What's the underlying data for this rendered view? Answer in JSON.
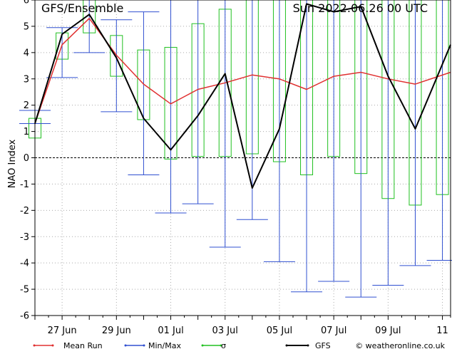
{
  "chart_data": {
    "type": "box",
    "title_left": "GFS/Ensemble",
    "title_right": "Sun 2022.06.26   00 UTC",
    "ylabel": "NAO Index",
    "ylim": [
      -6,
      6
    ],
    "yticks": [
      -6,
      -5,
      -4,
      -3,
      -2,
      -1,
      0,
      1,
      2,
      3,
      4,
      5,
      6
    ],
    "x_range": [
      26.0,
      11.3
    ],
    "xtick_labels": [
      {
        "label": "27 Jun",
        "day": 27
      },
      {
        "label": "29 Jun",
        "day": 29
      },
      {
        "label": "01 Jul",
        "day": 31
      },
      {
        "label": "03 Jul",
        "day": 33
      },
      {
        "label": "05 Jul",
        "day": 35
      },
      {
        "label": "07 Jul",
        "day": 37
      },
      {
        "label": "09 Jul",
        "day": 39
      },
      {
        "label": "11",
        "day": 41
      }
    ],
    "x_days": [
      26.0,
      26.5,
      27.0,
      27.5,
      28.0,
      28.5,
      29.0,
      29.5,
      30.0,
      30.5,
      31.0,
      31.5,
      32.0,
      32.5,
      33.0,
      33.5,
      34.0,
      34.5,
      35.0,
      35.5,
      36.0,
      36.5,
      37.0,
      37.5,
      38.0,
      38.5,
      39.0,
      39.5,
      40.0,
      40.5,
      41.0,
      41.3
    ],
    "series": [
      {
        "name": "Mean Run",
        "color": "#e03030",
        "x": [
          26.0,
          27.0,
          28.0,
          29.0,
          30.0,
          31.0,
          32.0,
          33.0,
          34.0,
          35.0,
          36.0,
          37.0,
          38.0,
          39.0,
          40.0,
          41.3
        ],
        "y": [
          1.3,
          4.3,
          5.3,
          3.9,
          2.8,
          2.05,
          2.6,
          2.85,
          3.15,
          3.0,
          2.6,
          3.1,
          3.25,
          3.0,
          2.8,
          3.25
        ]
      },
      {
        "name": "GFS",
        "color": "#000000",
        "x": [
          26.0,
          27.0,
          28.0,
          29.0,
          30.0,
          31.0,
          32.0,
          33.0,
          34.0,
          35.0,
          36.0,
          37.0,
          38.0,
          39.0,
          40.0,
          41.3
        ],
        "y": [
          1.3,
          4.7,
          5.45,
          3.8,
          1.5,
          0.3,
          1.6,
          3.2,
          -1.15,
          1.1,
          5.85,
          5.55,
          5.75,
          3.1,
          1.1,
          4.3
        ]
      }
    ],
    "minmax": [
      {
        "x": 26.0,
        "min": 1.3,
        "max": 1.8
      },
      {
        "x": 27.0,
        "min": 3.05,
        "max": 4.95
      },
      {
        "x": 28.0,
        "min": 4.0,
        "max": 6.0
      },
      {
        "x": 29.0,
        "min": 1.75,
        "max": 5.25
      },
      {
        "x": 30.0,
        "min": -0.65,
        "max": 5.55
      },
      {
        "x": 31.0,
        "min": -2.1,
        "max": 6.0
      },
      {
        "x": 32.0,
        "min": -1.75,
        "max": 6.0
      },
      {
        "x": 33.0,
        "min": -3.4,
        "max": 6.0
      },
      {
        "x": 34.0,
        "min": -2.35,
        "max": 6.0
      },
      {
        "x": 35.0,
        "min": -3.95,
        "max": 6.0
      },
      {
        "x": 36.0,
        "min": -5.1,
        "max": 6.0
      },
      {
        "x": 37.0,
        "min": -4.7,
        "max": 6.0
      },
      {
        "x": 38.0,
        "min": -5.3,
        "max": 6.0
      },
      {
        "x": 39.0,
        "min": -4.85,
        "max": 6.0
      },
      {
        "x": 40.0,
        "min": -4.1,
        "max": 6.0
      },
      {
        "x": 41.0,
        "min": -3.9,
        "max": 6.0
      }
    ],
    "sigma": [
      {
        "x": 26.0,
        "low": 0.75,
        "high": 1.5
      },
      {
        "x": 27.0,
        "low": 3.75,
        "high": 4.75
      },
      {
        "x": 28.0,
        "low": 4.75,
        "high": 6.0
      },
      {
        "x": 29.0,
        "low": 3.1,
        "high": 4.65
      },
      {
        "x": 30.0,
        "low": 1.45,
        "high": 4.1
      },
      {
        "x": 31.0,
        "low": -0.05,
        "high": 4.2
      },
      {
        "x": 32.0,
        "low": 0.05,
        "high": 5.1
      },
      {
        "x": 33.0,
        "low": 0.05,
        "high": 5.65
      },
      {
        "x": 34.0,
        "low": 0.15,
        "high": 6.0
      },
      {
        "x": 35.0,
        "low": -0.15,
        "high": 6.0
      },
      {
        "x": 36.0,
        "low": -0.65,
        "high": 6.0
      },
      {
        "x": 37.0,
        "low": 0.05,
        "high": 6.0
      },
      {
        "x": 38.0,
        "low": -0.6,
        "high": 6.0
      },
      {
        "x": 39.0,
        "low": -1.55,
        "high": 6.0
      },
      {
        "x": 40.0,
        "low": -1.8,
        "high": 6.0
      },
      {
        "x": 41.0,
        "low": -1.4,
        "high": 6.0
      }
    ],
    "colors": {
      "minmax": "#3050d0",
      "sigma": "#20c020",
      "mean": "#e03030",
      "gfs": "#000000",
      "grid": "#aaaaaa"
    },
    "grid": true,
    "legend": {
      "placement": "bottom",
      "items": [
        {
          "label": "Mean Run",
          "color": "#e03030"
        },
        {
          "label": "Min/Max",
          "color": "#3050d0"
        },
        {
          "label": "σ",
          "color": "#20c020"
        },
        {
          "label": "GFS",
          "color": "#000000"
        }
      ]
    },
    "credit": "© weatheronline.co.uk"
  }
}
